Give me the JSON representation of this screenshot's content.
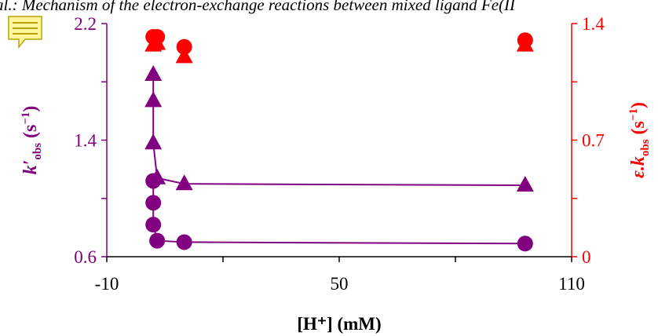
{
  "header": {
    "text": "al.: Mechanism of the electron-exchange reactions between mixed ligand Fe(II"
  },
  "icons": {
    "note": "note-icon"
  },
  "colors": {
    "purple": "#800080",
    "red": "#ff0000",
    "axis": "#000000",
    "note_fill": "#fff59d",
    "note_stroke": "#b8a400"
  },
  "chart_data": {
    "type": "scatter",
    "xlabel": "[H⁺] (mM)",
    "xlim": [
      -10,
      110
    ],
    "xticks": [
      "-10",
      "50",
      "110"
    ],
    "xtick_values": [
      -10,
      50,
      110
    ],
    "ylabel_left": {
      "main": "k′",
      "sub": "obs",
      "unit_pre": " (s",
      "unit_sup": "−1",
      "unit_post": ")"
    },
    "ylim_left": [
      0.6,
      2.2
    ],
    "yticks_left": [
      "0.6",
      "1.4",
      "2.2"
    ],
    "ytick_values_left": [
      0.6,
      1.4,
      2.2
    ],
    "ylabel_right": {
      "main": "ε.k",
      "sub": "obs",
      "unit_pre": " (s",
      "unit_sup": "−1",
      "unit_post": ")"
    },
    "ylim_right": [
      0,
      1.4
    ],
    "yticks_right": [
      "0",
      "0.7",
      "1.4"
    ],
    "ytick_values_right": [
      0,
      0.7,
      1.4
    ],
    "grid": false,
    "series": [
      {
        "axis": "left",
        "marker": "triangle",
        "color": "#800080",
        "line": true,
        "points": [
          [
            2,
            1.85
          ],
          [
            2,
            1.67
          ],
          [
            2,
            1.38
          ],
          [
            3,
            1.14
          ],
          [
            10,
            1.1
          ],
          [
            98,
            1.09
          ]
        ]
      },
      {
        "axis": "left",
        "marker": "circle",
        "color": "#800080",
        "line": true,
        "points": [
          [
            2,
            1.12
          ],
          [
            2,
            0.97
          ],
          [
            2,
            0.82
          ],
          [
            3,
            0.71
          ],
          [
            10,
            0.7
          ],
          [
            98,
            0.69
          ]
        ]
      },
      {
        "axis": "right",
        "marker": "triangle",
        "color": "#ff0000",
        "line": false,
        "points": [
          [
            2,
            1.27
          ],
          [
            3,
            1.28
          ],
          [
            10,
            1.2
          ],
          [
            98,
            1.27
          ]
        ]
      },
      {
        "axis": "right",
        "marker": "circle",
        "color": "#ff0000",
        "line": false,
        "points": [
          [
            2,
            1.32
          ],
          [
            3,
            1.32
          ],
          [
            10,
            1.26
          ],
          [
            98,
            1.3
          ]
        ]
      }
    ]
  }
}
